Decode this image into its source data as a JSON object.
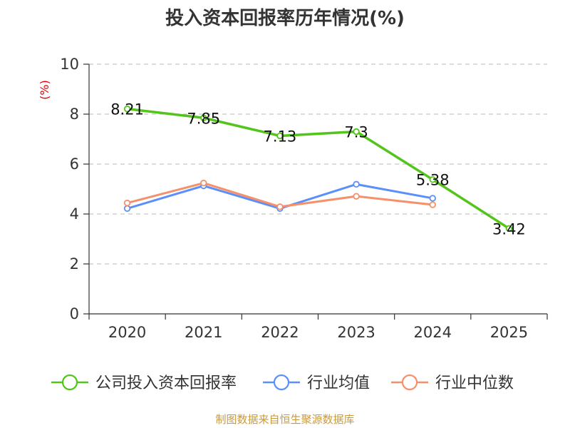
{
  "chart_data": {
    "type": "line",
    "title": "投入资本回报率历年情况(%)",
    "ylabel": "(%)",
    "xlabel": "",
    "ylim": [
      0,
      10
    ],
    "yticks": [
      0,
      2,
      4,
      6,
      8,
      10
    ],
    "categories": [
      "2020",
      "2021",
      "2022",
      "2023",
      "2024",
      "2025"
    ],
    "grid": true,
    "legend_position": "bottom",
    "series": [
      {
        "name": "公司投入资本回报率",
        "color": "#52c41a",
        "values": [
          8.21,
          7.85,
          7.13,
          7.3,
          5.38,
          3.42
        ],
        "labels": [
          "8.21",
          "7.85",
          "7.13",
          "7.3",
          "5.38",
          "3.42"
        ]
      },
      {
        "name": "行业均值",
        "color": "#5b8ff9",
        "values": [
          4.22,
          5.13,
          4.22,
          5.19,
          4.63,
          null
        ]
      },
      {
        "name": "行业中位数",
        "color": "#f6906a",
        "values": [
          4.44,
          5.24,
          4.29,
          4.71,
          4.37,
          null
        ]
      }
    ],
    "source": "制图数据来自恒生聚源数据库"
  }
}
